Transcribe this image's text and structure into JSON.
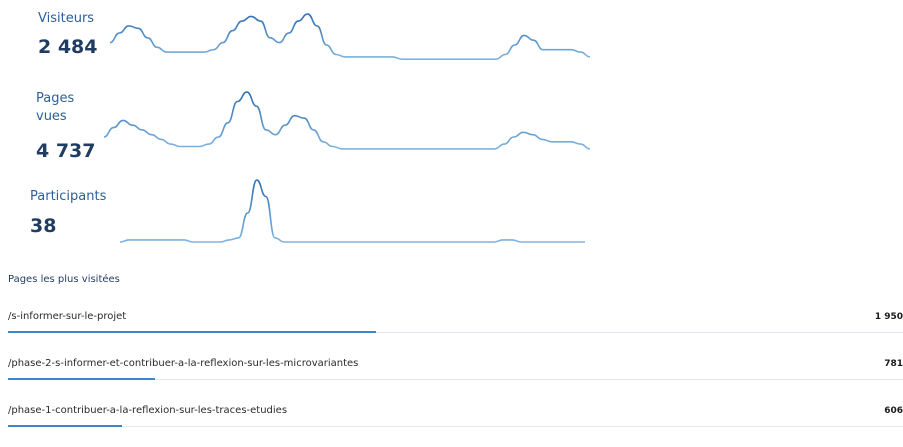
{
  "metrics": [
    {
      "key": "visiteurs",
      "label": "Visiteurs",
      "value": "2 484",
      "series": [
        9,
        13,
        16,
        15,
        11,
        7,
        5,
        5,
        5,
        5,
        5,
        6,
        9,
        14,
        18,
        20,
        18,
        11,
        9,
        13,
        18,
        21,
        16,
        8,
        4,
        3,
        3,
        3,
        3,
        3,
        3,
        2,
        2,
        2,
        2,
        2,
        2,
        2,
        2,
        2,
        2,
        2,
        4,
        8,
        12,
        10,
        6,
        6,
        6,
        6,
        5,
        3
      ]
    },
    {
      "key": "pages-vues",
      "label": "Pages\nvues",
      "value": "4 737",
      "series": [
        8,
        12,
        15,
        13,
        11,
        9,
        7,
        5,
        4,
        4,
        4,
        5,
        8,
        14,
        23,
        27,
        21,
        11,
        9,
        13,
        17,
        16,
        11,
        6,
        4,
        3,
        3,
        3,
        3,
        3,
        3,
        3,
        3,
        3,
        3,
        3,
        3,
        3,
        3,
        3,
        3,
        3,
        5,
        8,
        10,
        9,
        7,
        6,
        6,
        6,
        5,
        3
      ]
    },
    {
      "key": "participants",
      "label": "Participants",
      "value": "38",
      "series": [
        0,
        1,
        1,
        1,
        1,
        1,
        1,
        1,
        0,
        0,
        0,
        0,
        1,
        2,
        14,
        30,
        22,
        2,
        0,
        0,
        0,
        0,
        0,
        0,
        0,
        0,
        0,
        0,
        0,
        0,
        0,
        0,
        0,
        0,
        0,
        0,
        0,
        0,
        0,
        0,
        0,
        0,
        1,
        1,
        0,
        0,
        0,
        0,
        0,
        0,
        0,
        0
      ]
    }
  ],
  "top_pages": {
    "title": "Pages les plus visitées",
    "items": [
      {
        "path": "/s-informer-sur-le-projet",
        "count": "1 950",
        "value": 1950
      },
      {
        "path": "/phase-2-s-informer-et-contribuer-a-la-reflexion-sur-les-microvariantes",
        "count": "781",
        "value": 781
      },
      {
        "path": "/phase-1-contribuer-a-la-reflexion-sur-les-traces-etudies",
        "count": "606",
        "value": 606
      }
    ]
  },
  "colors": {
    "line_light": "#7fb3e0",
    "line_dark": "#2f6fb0",
    "bar": "#3e86c8",
    "separator": "#e3e8ef"
  }
}
